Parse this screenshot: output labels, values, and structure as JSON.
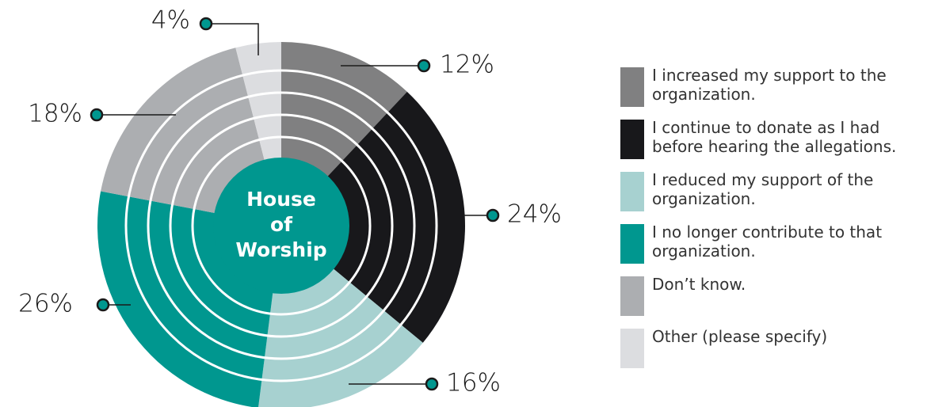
{
  "chart_data": {
    "type": "pie",
    "title": "House of Worship",
    "categories": [
      "I increased my support to the organization.",
      "I continue to donate as I had before hearing the allegations.",
      "I reduced my support of the organization.",
      "I no longer contribute to that organization.",
      "Don’t know.",
      "Other (please specify)"
    ],
    "values": [
      12,
      24,
      16,
      26,
      18,
      4
    ],
    "value_labels": [
      "12%",
      "24%",
      "16%",
      "26%",
      "18%",
      "4%"
    ],
    "colors": [
      "#808081",
      "#18181b",
      "#a7d1d0",
      "#00978f",
      "#acaeb1",
      "#dcdde0"
    ],
    "legend": "right"
  }
}
